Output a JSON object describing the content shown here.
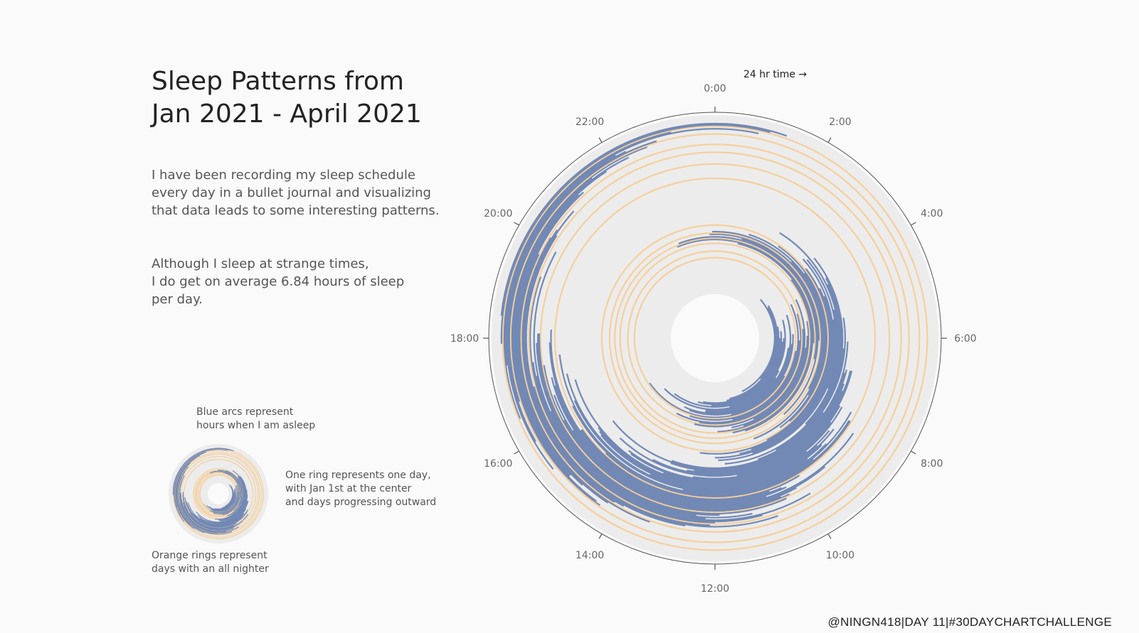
{
  "title": {
    "line1": "Sleep Patterns from",
    "line2": "Jan 2021 - April 2021"
  },
  "description": {
    "para1": [
      "I have been recording my sleep schedule",
      "every day in a bullet journal and visualizing",
      "that data leads to some interesting patterns."
    ],
    "para2": [
      "Although I sleep at strange times,",
      "I do get on average 6.84 hours of sleep",
      "per day."
    ]
  },
  "legend": {
    "blue_note": [
      "Blue arcs represent",
      "hours when I am asleep"
    ],
    "ring_note": [
      "One ring represents one day,",
      "with Jan 1st at the center",
      "and days progressing outward"
    ],
    "orange_note": [
      "Orange rings represent",
      "days with an all nighter"
    ]
  },
  "credit": "@NINGN418|DAY 11|#30DAYCHARTCHALLENGE",
  "colors": {
    "asleep": "#7289b5",
    "all_nighter": "#f5cf9c",
    "band": "#ececec",
    "background": "#fafafa"
  },
  "chart_data": {
    "type": "radial",
    "axis_label": "24 hr time →",
    "tick_labels": [
      "0:00",
      "2:00",
      "4:00",
      "6:00",
      "8:00",
      "10:00",
      "12:00",
      "14:00",
      "16:00",
      "18:00",
      "20:00",
      "22:00"
    ],
    "tick_hours": [
      0,
      2,
      4,
      6,
      8,
      10,
      12,
      14,
      16,
      18,
      20,
      22
    ],
    "hour_range": [
      0,
      24
    ],
    "day_range": [
      "Jan 1",
      "Apr 30"
    ],
    "average_sleep_hours": 6.84,
    "days": [
      {
        "day": 1,
        "sleep": [
          [
            3.3,
            10.2
          ]
        ]
      },
      {
        "day": 2,
        "sleep": [
          [
            4,
            8.8
          ]
        ]
      },
      {
        "day": 3,
        "sleep": [
          [
            3.9,
            11.1
          ]
        ]
      },
      {
        "day": 4,
        "sleep": [
          [
            5.3,
            11.3
          ]
        ]
      },
      {
        "day": 5,
        "sleep": [
          [
            6,
            12.7
          ]
        ]
      },
      {
        "day": 6,
        "sleep": [
          [
            5.6,
            13
          ]
        ]
      },
      {
        "day": 7,
        "sleep": [
          [
            6.2,
            12.2
          ]
        ]
      },
      {
        "day": 8,
        "sleep": [
          [
            6,
            14.4
          ]
        ]
      },
      {
        "day": 9,
        "sleep": [
          [
            5,
            11.2
          ]
        ]
      },
      {
        "day": 10,
        "sleep": [
          [
            7.8,
            15
          ]
        ]
      },
      {
        "day": 11,
        "sleep": [
          [
            8.2,
            12.5
          ]
        ]
      },
      {
        "day": 12,
        "sleep": [
          [
            6.5,
            12.5
          ]
        ]
      },
      {
        "day": 13,
        "sleep": [
          [
            4.8,
            13.6
          ]
        ]
      },
      {
        "day": 14,
        "sleep": [
          [
            6.3,
            13.3
          ]
        ]
      },
      {
        "day": 15,
        "sleep": [
          [
            5.8,
            11.2
          ]
        ]
      },
      {
        "day": 16,
        "sleep": [
          [
            7.9,
            15.7
          ]
        ]
      },
      {
        "day": 17,
        "sleep": [],
        "all_nighter": true
      },
      {
        "day": 18,
        "sleep": [
          [
            6.6,
            13.2
          ]
        ]
      },
      {
        "day": 19,
        "sleep": [
          [
            4.4,
            11.2
          ]
        ]
      },
      {
        "day": 20,
        "sleep": [
          [
            6.1,
            13.8
          ]
        ]
      },
      {
        "day": 21,
        "sleep": [
          [
            4.9,
            12.7
          ]
        ]
      },
      {
        "day": 22,
        "sleep": [],
        "all_nighter": true
      },
      {
        "day": 23,
        "sleep": [
          [
            5.6,
            12.9
          ]
        ]
      },
      {
        "day": 24,
        "sleep": [
          [
            4.3,
            10.3
          ]
        ]
      },
      {
        "day": 25,
        "sleep": [
          [
            6.4,
            11.3
          ]
        ]
      },
      {
        "day": 26,
        "sleep": [
          [
            5.9,
            10.8
          ]
        ]
      },
      {
        "day": 27,
        "sleep": [
          [
            5.3,
            11.9
          ]
        ]
      },
      {
        "day": 28,
        "sleep": [],
        "all_nighter": true
      },
      {
        "day": 29,
        "sleep": [
          [
            3.5,
            11.3
          ]
        ]
      },
      {
        "day": 30,
        "sleep": [
          [
            0.9,
            10.8
          ]
        ]
      },
      {
        "day": 31,
        "sleep": [
          [
            22.5,
            6.2
          ]
        ]
      },
      {
        "day": 32,
        "sleep": [],
        "all_nighter": true
      },
      {
        "day": 33,
        "sleep": [
          [
            22.6,
            6.8
          ]
        ]
      },
      {
        "day": 34,
        "sleep": [
          [
            1,
            9.2
          ]
        ]
      },
      {
        "day": 35,
        "sleep": [
          [
            23.8,
            6.1
          ]
        ]
      },
      {
        "day": 36,
        "sleep": [],
        "all_nighter": true
      },
      {
        "day": 37,
        "sleep": [
          [
            23.9,
            7.9
          ]
        ]
      },
      {
        "day": 38,
        "sleep": [
          [
            3,
            10.6
          ]
        ]
      },
      {
        "day": 39,
        "sleep": [
          [
            1.2,
            8.1
          ]
        ]
      },
      {
        "day": 40,
        "sleep": [
          [
            3.6,
            9.6
          ]
        ]
      },
      {
        "day": 41,
        "sleep": [
          [
            2.3,
            9.2
          ]
        ]
      },
      {
        "day": 42,
        "sleep": [],
        "all_nighter": true
      },
      {
        "day": 43,
        "sleep": [
          [
            3.5,
            10.2
          ]
        ]
      },
      {
        "day": 44,
        "sleep": [
          [
            4.3,
            12.5
          ]
        ]
      },
      {
        "day": 45,
        "sleep": [
          [
            4.6,
            10.8
          ]
        ]
      },
      {
        "day": 46,
        "sleep": [
          [
            3.2,
            11.2
          ]
        ]
      },
      {
        "day": 47,
        "sleep": [
          [
            5.4,
            12
          ]
        ]
      },
      {
        "day": 48,
        "sleep": [
          [
            3.3,
            10.8
          ]
        ]
      },
      {
        "day": 49,
        "sleep": [
          [
            5.1,
            11.9
          ]
        ]
      },
      {
        "day": 50,
        "sleep": [
          [
            2.1,
            7.6
          ]
        ]
      },
      {
        "day": 51,
        "sleep": [
          [
            4.3,
            8.9
          ]
        ]
      },
      {
        "day": 52,
        "sleep": [
          [
            4.1,
            11.7
          ]
        ]
      },
      {
        "day": 53,
        "sleep": [
          [
            3.4,
            10.1
          ]
        ]
      },
      {
        "day": 54,
        "sleep": [
          [
            6.3,
            10.7
          ]
        ]
      },
      {
        "day": 55,
        "sleep": [
          [
            5.4,
            13.3
          ]
        ]
      },
      {
        "day": 56,
        "sleep": [
          [
            8.3,
            15.4
          ]
        ]
      },
      {
        "day": 57,
        "sleep": [
          [
            6.1,
            13.3
          ]
        ]
      },
      {
        "day": 58,
        "sleep": [
          [
            7,
            12.6
          ]
        ]
      },
      {
        "day": 59,
        "sleep": [
          [
            6.9,
            12.8
          ]
        ]
      },
      {
        "day": 60,
        "sleep": [
          [
            7.3,
            13.8
          ]
        ]
      },
      {
        "day": 61,
        "sleep": [
          [
            7.5,
            14.9
          ]
        ]
      },
      {
        "day": 62,
        "sleep": [
          [
            6.9,
            11.4
          ]
        ]
      },
      {
        "day": 63,
        "sleep": [
          [
            6.9,
            12.6
          ]
        ]
      },
      {
        "day": 64,
        "sleep": [
          [
            7.9,
            14.5
          ]
        ]
      },
      {
        "day": 65,
        "sleep": [
          [
            8.4,
            14.4
          ]
        ]
      },
      {
        "day": 66,
        "sleep": [
          [
            7.9,
            13.4
          ]
        ]
      },
      {
        "day": 67,
        "sleep": [
          [
            9.4,
            16.9
          ]
        ]
      },
      {
        "day": 68,
        "sleep": [
          [
            8.6,
            15.5
          ]
        ]
      },
      {
        "day": 69,
        "sleep": [
          [
            9.1,
            15.4
          ]
        ]
      },
      {
        "day": 70,
        "sleep": [
          [
            8.5,
            15.3
          ]
        ]
      },
      {
        "day": 71,
        "sleep": [
          [
            9,
            13.7
          ]
        ]
      },
      {
        "day": 72,
        "sleep": [
          [
            9.5,
            17.1
          ]
        ]
      },
      {
        "day": 73,
        "sleep": [
          [
            8.9,
            16.4
          ]
        ]
      },
      {
        "day": 74,
        "sleep": [
          [
            7.9,
            12.8
          ]
        ]
      },
      {
        "day": 75,
        "sleep": [
          [
            9.4,
            17.6
          ]
        ]
      },
      {
        "day": 76,
        "sleep": [
          [
            8.1,
            16.3
          ]
        ]
      },
      {
        "day": 77,
        "sleep": [
          [
            8.1,
            14.9
          ]
        ]
      },
      {
        "day": 78,
        "sleep": [],
        "all_nighter": true
      },
      {
        "day": 79,
        "sleep": [
          [
            9.9,
            15.7
          ]
        ]
      },
      {
        "day": 80,
        "sleep": [
          [
            10.7,
            15.7
          ]
        ]
      },
      {
        "day": 81,
        "sleep": [
          [
            10.4,
            18.2
          ]
        ]
      },
      {
        "day": 82,
        "sleep": [
          [
            10.3,
            17.9
          ]
        ]
      },
      {
        "day": 83,
        "sleep": [
          [
            10.8,
            16.9
          ]
        ]
      },
      {
        "day": 84,
        "sleep": [
          [
            8.3,
            17.1
          ]
        ]
      },
      {
        "day": 85,
        "sleep": [
          [
            9.3,
            15.8
          ]
        ]
      },
      {
        "day": 86,
        "sleep": [
          [
            10.1,
            16.7
          ]
        ]
      },
      {
        "day": 87,
        "sleep": [
          [
            10.5,
            16.1
          ]
        ]
      },
      {
        "day": 88,
        "sleep": [
          [
            10.3,
            17.4
          ]
        ]
      },
      {
        "day": 89,
        "sleep": [],
        "all_nighter": true
      },
      {
        "day": 90,
        "sleep": [
          [
            10.4,
            18.1
          ]
        ]
      },
      {
        "day": 91,
        "sleep": [
          [
            11.9,
            18.1
          ]
        ]
      },
      {
        "day": 92,
        "sleep": [
          [
            12.4,
            17.9
          ]
        ]
      },
      {
        "day": 93,
        "sleep": [
          [
            11.2,
            16.4
          ]
        ]
      },
      {
        "day": 94,
        "sleep": [
          [
            12.2,
            19.9
          ]
        ]
      },
      {
        "day": 95,
        "sleep": [
          [
            9.9,
            17.2
          ]
        ]
      },
      {
        "day": 96,
        "sleep": [
          [
            11,
            17.5
          ]
        ]
      },
      {
        "day": 97,
        "sleep": [
          [
            12,
            19.3
          ]
        ]
      },
      {
        "day": 98,
        "sleep": [],
        "all_nighter": true
      },
      {
        "day": 99,
        "sleep": [
          [
            12.1,
            17
          ]
        ]
      },
      {
        "day": 100,
        "sleep": [
          [
            10.7,
            20.2
          ]
        ]
      },
      {
        "day": 101,
        "sleep": [
          [
            12.6,
            20.8
          ]
        ]
      },
      {
        "day": 102,
        "sleep": [
          [
            13.9,
            20.3
          ]
        ]
      },
      {
        "day": 103,
        "sleep": [
          [
            14.1,
            20.1
          ]
        ]
      },
      {
        "day": 104,
        "sleep": [],
        "all_nighter": true
      },
      {
        "day": 105,
        "sleep": [
          [
            13.3,
            19.7
          ]
        ]
      },
      {
        "day": 106,
        "sleep": [
          [
            14.2,
            21.2
          ]
        ]
      },
      {
        "day": 107,
        "sleep": [
          [
            14.8,
            21.1
          ]
        ]
      },
      {
        "day": 108,
        "sleep": [
          [
            15.1,
            21.8
          ]
        ]
      },
      {
        "day": 109,
        "sleep": [
          [
            15.1,
            22.3
          ]
        ]
      },
      {
        "day": 110,
        "sleep": [
          [
            14.4,
            21.5
          ]
        ]
      },
      {
        "day": 111,
        "sleep": [
          [
            14.3,
            22.7
          ]
        ]
      },
      {
        "day": 112,
        "sleep": [],
        "all_nighter": true
      },
      {
        "day": 113,
        "sleep": [
          [
            16.8,
            22.9
          ]
        ]
      },
      {
        "day": 114,
        "sleep": [
          [
            16,
            22.3
          ]
        ]
      },
      {
        "day": 115,
        "sleep": [
          [
            15.4,
            22.1
          ]
        ]
      },
      {
        "day": 116,
        "sleep": [
          [
            17.5,
            0.8
          ]
        ]
      },
      {
        "day": 117,
        "sleep": [
          [
            16.5,
            23.2
          ]
        ]
      },
      {
        "day": 118,
        "sleep": [],
        "all_nighter": true
      },
      {
        "day": 119,
        "sleep": [
          [
            17.9,
            1
          ]
        ]
      },
      {
        "day": 120,
        "sleep": [
          [
            18.4,
            1.3
          ]
        ]
      }
    ]
  }
}
